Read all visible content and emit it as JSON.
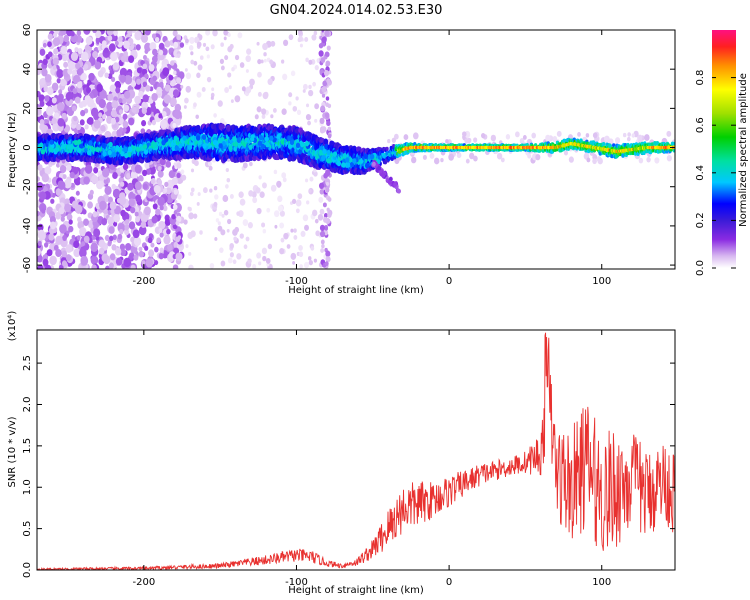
{
  "title": "GN04.2024.014.02.53.E30",
  "colors": {
    "snr_line": "#e8312f",
    "colormap": [
      "#ffffff",
      "#d8b8f0",
      "#8a2be2",
      "#3b1bd8",
      "#0000ff",
      "#00c8ff",
      "#00e0a0",
      "#00d000",
      "#a0e000",
      "#ffff00",
      "#ff9000",
      "#ff2020",
      "#ff1080"
    ]
  },
  "chart_data": [
    {
      "type": "heatmap",
      "title": "GN04.2024.014.02.53.E30",
      "xlabel": "Height of straight line (km)",
      "ylabel": "Frequency (Hz)",
      "xlim": [
        -270,
        148
      ],
      "ylim": [
        -62,
        60
      ],
      "x_ticks": [
        -200,
        -100,
        0,
        100
      ],
      "x_tick_labels": [
        "-200",
        "-100",
        "0",
        "100"
      ],
      "y_ticks": [
        -60,
        -40,
        -20,
        0,
        20,
        40,
        60
      ],
      "y_tick_labels": [
        "-60",
        "-40",
        "-20",
        "0",
        "20",
        "40",
        "60"
      ],
      "colorbar": {
        "label": "Normalized spectral amplitude",
        "range": [
          0,
          1
        ],
        "ticks": [
          0.0,
          0.2,
          0.4,
          0.6,
          0.8
        ],
        "tick_labels": [
          "0.0",
          "0.2",
          "0.4",
          "0.6",
          "0.8"
        ]
      },
      "band_center_track": [
        [
          -265,
          0
        ],
        [
          -240,
          0
        ],
        [
          -215,
          -2
        ],
        [
          -190,
          1
        ],
        [
          -165,
          3
        ],
        [
          -140,
          2
        ],
        [
          -120,
          3
        ],
        [
          -100,
          2
        ],
        [
          -85,
          -3
        ],
        [
          -70,
          -6
        ],
        [
          -55,
          -7
        ],
        [
          -45,
          -5
        ],
        [
          -35,
          -2
        ],
        [
          -25,
          0
        ],
        [
          0,
          0
        ],
        [
          50,
          0
        ],
        [
          70,
          0
        ],
        [
          80,
          2
        ],
        [
          95,
          0
        ],
        [
          110,
          -2
        ],
        [
          130,
          0
        ],
        [
          148,
          0
        ]
      ],
      "band_halfwidth_track": [
        [
          -265,
          6
        ],
        [
          -215,
          6
        ],
        [
          -180,
          7
        ],
        [
          -150,
          9
        ],
        [
          -120,
          8
        ],
        [
          -100,
          8
        ],
        [
          -80,
          7
        ],
        [
          -60,
          6
        ],
        [
          -45,
          4
        ],
        [
          -35,
          3
        ],
        [
          -20,
          1.5
        ],
        [
          0,
          1.2
        ],
        [
          50,
          1.2
        ],
        [
          70,
          2.5
        ],
        [
          90,
          2.5
        ],
        [
          110,
          3
        ],
        [
          148,
          2
        ]
      ]
    },
    {
      "type": "line",
      "xlabel": "Height of straight line (km)",
      "ylabel": "SNR (10 * v/v)",
      "y_multiplier": "(x10⁴)",
      "xlim": [
        -270,
        148
      ],
      "ylim": [
        0,
        2.9
      ],
      "x_ticks": [
        -200,
        -100,
        0,
        100
      ],
      "x_tick_labels": [
        "-200",
        "-100",
        "0",
        "100"
      ],
      "y_ticks": [
        0.0,
        0.5,
        1.0,
        1.5,
        2.0,
        2.5
      ],
      "y_tick_labels": [
        "0.0",
        "0.5",
        "1.0",
        "1.5",
        "2.0",
        "2.5"
      ],
      "series": [
        {
          "color": "#e8312f",
          "x": [
            -270,
            -200,
            -150,
            -120,
            -100,
            -90,
            -80,
            -70,
            -60,
            -50,
            -40,
            -30,
            -20,
            -10,
            0,
            10,
            20,
            30,
            40,
            50,
            55,
            60,
            63,
            65,
            70,
            80,
            90,
            100,
            110,
            120,
            130,
            140,
            148
          ],
          "y": [
            0.01,
            0.02,
            0.05,
            0.12,
            0.18,
            0.16,
            0.08,
            0.05,
            0.1,
            0.25,
            0.5,
            0.75,
            0.8,
            0.85,
            0.95,
            1.05,
            1.15,
            1.2,
            1.25,
            1.3,
            1.35,
            1.4,
            1.8,
            2.2,
            1.2,
            1.0,
            1.3,
            0.9,
            1.0,
            1.1,
            0.9,
            1.1,
            0.9
          ],
          "amp": [
            0.01,
            0.02,
            0.03,
            0.06,
            0.08,
            0.08,
            0.04,
            0.03,
            0.05,
            0.12,
            0.25,
            0.3,
            0.28,
            0.22,
            0.2,
            0.16,
            0.14,
            0.12,
            0.12,
            0.14,
            0.2,
            0.3,
            0.4,
            0.45,
            0.6,
            0.7,
            0.8,
            0.75,
            0.75,
            0.6,
            0.55,
            0.5,
            0.5
          ]
        }
      ]
    }
  ]
}
